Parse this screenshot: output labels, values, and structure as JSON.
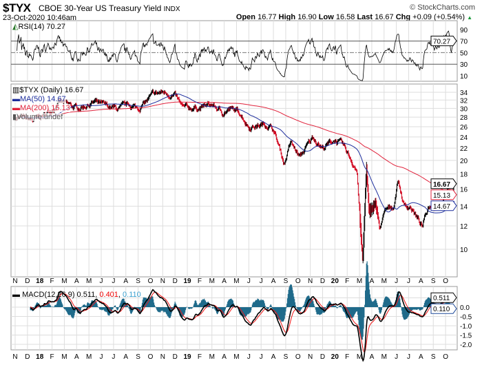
{
  "header": {
    "symbol": "$TYX",
    "name": "CBOE 30-Year US Treasury Yield",
    "exchange": "INDX",
    "copyright": "© StockCharts.com",
    "datetime": "23-Oct-2020 10:46am",
    "open_label": "Open",
    "open": "16.77",
    "high_label": "High",
    "high": "16.90",
    "low_label": "Low",
    "low": "16.58",
    "last_label": "Last",
    "last": "16.67",
    "chg_label": "Chg",
    "chg": "+0.09 (+0.54%)",
    "up_icon": "triangle-up-icon"
  },
  "colors": {
    "up": "#000000",
    "down": "#d0021b",
    "ma50": "#1c2d9c",
    "ma200": "#e0213a",
    "hist": "#1f6a8a",
    "signal": "#ee1111",
    "grid": "#dddddd"
  },
  "chart_data": [
    {
      "type": "line",
      "title": "RSI(14) 70.27",
      "legend": "RSI(14) 70.27",
      "ylim": [
        0,
        100
      ],
      "yticks": [
        90,
        70,
        50,
        30,
        10
      ],
      "levels": [
        70,
        30
      ],
      "mid": 50,
      "last_label": "70.27"
    },
    {
      "type": "candlestick",
      "title": "$TYX (Daily) 16.67",
      "scale": "log",
      "ylim": [
        8.7,
        35.5
      ],
      "yticks": [
        34,
        32,
        30,
        28,
        26,
        24,
        22,
        20,
        18,
        16,
        14,
        12,
        10
      ],
      "legend": [
        "$TYX (Daily) 16.67",
        "MA(50) 14.67",
        "MA(200) 15.13",
        "Volume undef"
      ],
      "last_labels": {
        "price": "16.67",
        "ma200": "15.13",
        "ma50": "14.67"
      },
      "keypoints": [
        [
          "2017-11-01",
          28.0
        ],
        [
          "2017-12-15",
          27.3
        ],
        [
          "2018-01-15",
          28.5
        ],
        [
          "2018-02-20",
          31.5
        ],
        [
          "2018-04-01",
          30.0
        ],
        [
          "2018-05-15",
          31.5
        ],
        [
          "2018-06-10",
          30.5
        ],
        [
          "2018-07-15",
          29.8
        ],
        [
          "2018-08-10",
          30.8
        ],
        [
          "2018-09-01",
          29.9
        ],
        [
          "2018-10-10",
          33.5
        ],
        [
          "2018-11-05",
          34.0
        ],
        [
          "2018-12-01",
          33.0
        ],
        [
          "2018-12-20",
          30.0
        ],
        [
          "2019-02-01",
          30.2
        ],
        [
          "2019-03-01",
          30.8
        ],
        [
          "2019-03-27",
          29.0
        ],
        [
          "2019-04-15",
          29.8
        ],
        [
          "2019-05-10",
          29.0
        ],
        [
          "2019-06-01",
          26.0
        ],
        [
          "2019-07-15",
          26.5
        ],
        [
          "2019-08-01",
          25.5
        ],
        [
          "2019-08-28",
          19.5
        ],
        [
          "2019-09-13",
          23.0
        ],
        [
          "2019-10-05",
          20.5
        ],
        [
          "2019-11-08",
          24.0
        ],
        [
          "2019-12-01",
          22.0
        ],
        [
          "2020-01-01",
          23.5
        ],
        [
          "2020-01-20",
          22.5
        ],
        [
          "2020-02-05",
          20.8
        ],
        [
          "2020-02-25",
          18.5
        ],
        [
          "2020-03-09",
          9.0
        ],
        [
          "2020-03-18",
          19.0
        ],
        [
          "2020-03-25",
          13.0
        ],
        [
          "2020-04-10",
          14.5
        ],
        [
          "2020-04-20",
          11.8
        ],
        [
          "2020-05-05",
          13.5
        ],
        [
          "2020-05-25",
          14.0
        ],
        [
          "2020-06-05",
          17.3
        ],
        [
          "2020-06-20",
          14.0
        ],
        [
          "2020-07-05",
          14.0
        ],
        [
          "2020-08-04",
          11.9
        ],
        [
          "2020-08-20",
          14.0
        ],
        [
          "2020-09-15",
          14.2
        ],
        [
          "2020-10-08",
          16.0
        ],
        [
          "2020-10-15",
          15.0
        ],
        [
          "2020-10-23",
          16.67
        ]
      ]
    },
    {
      "type": "line+histogram",
      "title": "MACD(12,26,9)",
      "legend_name": "MACD(12,26,9)",
      "macd": "0.511",
      "signal": "0.401",
      "hist": "0.110",
      "ylim": [
        -2.4,
        1.0
      ],
      "yticks": [
        "0.5",
        "0.0",
        "-0.5",
        "-1.0",
        "-1.5",
        "-2.0"
      ],
      "last_labels": {
        "macd": "0.511",
        "hist": "0.110"
      }
    }
  ],
  "xaxis": {
    "labels": [
      "N",
      "D",
      "18",
      "F",
      "M",
      "A",
      "M",
      "J",
      "J",
      "A",
      "S",
      "O",
      "N",
      "D",
      "19",
      "F",
      "M",
      "A",
      "M",
      "J",
      "J",
      "A",
      "S",
      "O",
      "N",
      "D",
      "20",
      "F",
      "M",
      "A",
      "M",
      "J",
      "J",
      "A",
      "S",
      "O"
    ],
    "start": "2017-11-01"
  }
}
